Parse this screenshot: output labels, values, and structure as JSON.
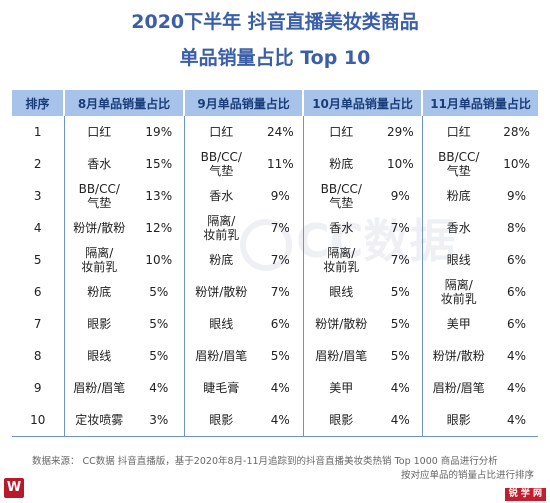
{
  "title": {
    "line1": "2020下半年 抖音直播美妆类商品",
    "line2": "单品销量占比 Top 10"
  },
  "table": {
    "headers": [
      "排序",
      "8月单品销量占比",
      "9月单品销量占比",
      "10月单品销量占比",
      "11月单品销量占比"
    ],
    "rows": [
      {
        "rank": "1",
        "cells": [
          [
            "口红",
            "19%"
          ],
          [
            "口红",
            "24%"
          ],
          [
            "口红",
            "29%"
          ],
          [
            "口红",
            "28%"
          ]
        ]
      },
      {
        "rank": "2",
        "cells": [
          [
            "香水",
            "15%"
          ],
          [
            "BB/CC/\n气垫",
            "11%"
          ],
          [
            "粉底",
            "10%"
          ],
          [
            "BB/CC/\n气垫",
            "10%"
          ]
        ]
      },
      {
        "rank": "3",
        "cells": [
          [
            "BB/CC/\n气垫",
            "13%"
          ],
          [
            "香水",
            "9%"
          ],
          [
            "BB/CC/\n气垫",
            "9%"
          ],
          [
            "粉底",
            "9%"
          ]
        ]
      },
      {
        "rank": "4",
        "cells": [
          [
            "粉饼/散粉",
            "12%"
          ],
          [
            "隔离/\n妆前乳",
            "7%"
          ],
          [
            "香水",
            "7%"
          ],
          [
            "香水",
            "8%"
          ]
        ]
      },
      {
        "rank": "5",
        "cells": [
          [
            "隔离/\n妆前乳",
            "10%"
          ],
          [
            "粉底",
            "7%"
          ],
          [
            "隔离/\n妆前乳",
            "7%"
          ],
          [
            "眼线",
            "6%"
          ]
        ]
      },
      {
        "rank": "6",
        "cells": [
          [
            "粉底",
            "5%"
          ],
          [
            "粉饼/散粉",
            "7%"
          ],
          [
            "眼线",
            "5%"
          ],
          [
            "隔离/\n妆前乳",
            "6%"
          ]
        ]
      },
      {
        "rank": "7",
        "cells": [
          [
            "眼影",
            "5%"
          ],
          [
            "眼线",
            "6%"
          ],
          [
            "粉饼/散粉",
            "5%"
          ],
          [
            "美甲",
            "6%"
          ]
        ]
      },
      {
        "rank": "8",
        "cells": [
          [
            "眼线",
            "5%"
          ],
          [
            "眉粉/眉笔",
            "5%"
          ],
          [
            "眉粉/眉笔",
            "5%"
          ],
          [
            "粉饼/散粉",
            "4%"
          ]
        ]
      },
      {
        "rank": "9",
        "cells": [
          [
            "眉粉/眉笔",
            "4%"
          ],
          [
            "睫毛膏",
            "4%"
          ],
          [
            "美甲",
            "4%"
          ],
          [
            "眉粉/眉笔",
            "4%"
          ]
        ]
      },
      {
        "rank": "10",
        "cells": [
          [
            "定妆喷雾",
            "3%"
          ],
          [
            "眼影",
            "4%"
          ],
          [
            "眼影",
            "4%"
          ],
          [
            "眼影",
            "4%"
          ]
        ]
      }
    ]
  },
  "footer": {
    "line1": "数据来源：  CC数据 抖音直播版，基于2020年8月-11月追踪到的抖音直播美妆类热销 Top 1000 商品进行分析",
    "line2": "按对应单品的销量占比进行排序"
  },
  "watermark": "CC数据",
  "logos": {
    "left": "W",
    "right": "锐 学 网"
  },
  "colors": {
    "title": "#3a5fa8",
    "header_bg": "#a7c3ea",
    "header_text": "#1a3d7a",
    "divider": "#6f93c9"
  }
}
